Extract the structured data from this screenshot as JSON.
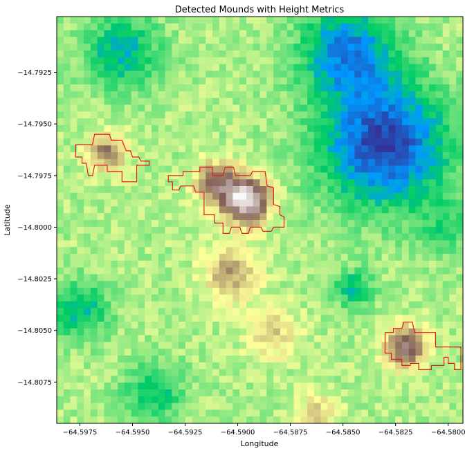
{
  "chart_data": {
    "type": "heatmap",
    "title": "Detected Mounds with Height Metrics",
    "xlabel": "Longitude",
    "ylabel": "Latitude",
    "xlim": [
      -64.5986,
      -64.5793
    ],
    "ylim": [
      -14.8095,
      -14.7898
    ],
    "x_ticks": [
      -64.5975,
      -64.595,
      -64.5925,
      -64.59,
      -64.5875,
      -64.585,
      -64.5825,
      -64.58
    ],
    "x_tick_labels": [
      "−64.5975",
      "−64.5950",
      "−64.5925",
      "−64.5900",
      "−64.5875",
      "−64.5850",
      "−64.5825",
      "−64.5800"
    ],
    "y_ticks": [
      -14.7925,
      -14.795,
      -14.7975,
      -14.8,
      -14.8025,
      -14.805,
      -14.8075
    ],
    "y_tick_labels": [
      "−14.7925",
      "−14.7950",
      "−14.7975",
      "−14.8000",
      "−14.8025",
      "−14.8050",
      "−14.8075"
    ],
    "colormap": "terrain",
    "grid": false,
    "grid_size": [
      60,
      60
    ],
    "mound_outline_color": "#e31a1c",
    "elevation_model": {
      "base": 0.42,
      "high_features": [
        {
          "lon": -64.5896,
          "lat": -14.7987,
          "amplitude": 0.55,
          "radius": 0.0011
        },
        {
          "lon": -64.591,
          "lat": -14.7978,
          "amplitude": 0.32,
          "radius": 0.001
        },
        {
          "lon": -64.5962,
          "lat": -14.7964,
          "amplitude": 0.28,
          "radius": 0.0009
        },
        {
          "lon": -64.582,
          "lat": -14.8058,
          "amplitude": 0.36,
          "radius": 0.001
        },
        {
          "lon": -64.5903,
          "lat": -14.8022,
          "amplitude": 0.22,
          "radius": 0.0013
        },
        {
          "lon": -64.5883,
          "lat": -14.8052,
          "amplitude": 0.16,
          "radius": 0.0012
        },
        {
          "lon": -64.5862,
          "lat": -14.809,
          "amplitude": 0.14,
          "radius": 0.001
        }
      ],
      "low_features": [
        {
          "lon": -64.583,
          "lat": -14.796,
          "amplitude": 0.4,
          "radius": 0.003
        },
        {
          "lon": -64.5848,
          "lat": -14.7915,
          "amplitude": 0.3,
          "radius": 0.0022
        },
        {
          "lon": -64.5955,
          "lat": -14.7915,
          "amplitude": 0.22,
          "radius": 0.0018
        },
        {
          "lon": -64.5975,
          "lat": -14.804,
          "amplitude": 0.2,
          "radius": 0.0014
        },
        {
          "lon": -64.594,
          "lat": -14.808,
          "amplitude": 0.18,
          "radius": 0.0014
        },
        {
          "lon": -64.5845,
          "lat": -14.803,
          "amplitude": 0.2,
          "radius": 0.0009
        },
        {
          "lon": -64.58,
          "lat": -14.8,
          "amplitude": 0.12,
          "radius": 0.0012
        }
      ]
    },
    "mounds": [
      {
        "id": 1,
        "outline": [
          [
            -64.5977,
            -14.796
          ],
          [
            -64.5969,
            -14.796
          ],
          [
            -64.5968,
            -14.7955
          ],
          [
            -64.5961,
            -14.7955
          ],
          [
            -64.596,
            -14.7958
          ],
          [
            -64.5955,
            -14.7958
          ],
          [
            -64.5953,
            -14.7963
          ],
          [
            -64.5951,
            -14.7963
          ],
          [
            -64.595,
            -14.7966
          ],
          [
            -64.5947,
            -14.7966
          ],
          [
            -64.5946,
            -14.7968
          ],
          [
            -64.5942,
            -14.7968
          ],
          [
            -64.5942,
            -14.797
          ],
          [
            -64.5948,
            -14.797
          ],
          [
            -64.5948,
            -14.7978
          ],
          [
            -64.5955,
            -14.7978
          ],
          [
            -64.5955,
            -14.7973
          ],
          [
            -64.5962,
            -14.7973
          ],
          [
            -64.5962,
            -14.797
          ],
          [
            -64.5968,
            -14.797
          ],
          [
            -64.5969,
            -14.7975
          ],
          [
            -64.5971,
            -14.7975
          ],
          [
            -64.5972,
            -14.7969
          ],
          [
            -64.5974,
            -14.7969
          ],
          [
            -64.5974,
            -14.7966
          ],
          [
            -64.5977,
            -14.7966
          ]
        ]
      },
      {
        "id": 2,
        "outline": [
          [
            -64.5933,
            -14.7975
          ],
          [
            -64.5926,
            -14.7975
          ],
          [
            -64.5926,
            -14.7973
          ],
          [
            -64.5918,
            -14.7973
          ],
          [
            -64.5918,
            -14.7971
          ],
          [
            -64.5912,
            -14.7971
          ],
          [
            -64.5912,
            -14.7975
          ],
          [
            -64.5907,
            -14.7975
          ],
          [
            -64.5906,
            -14.7971
          ],
          [
            -64.5902,
            -14.7971
          ],
          [
            -64.5901,
            -14.7975
          ],
          [
            -64.5894,
            -14.7975
          ],
          [
            -64.5893,
            -14.7973
          ],
          [
            -64.5887,
            -14.7973
          ],
          [
            -64.5886,
            -14.798
          ],
          [
            -64.5883,
            -14.7981
          ],
          [
            -64.5883,
            -14.7989
          ],
          [
            -64.588,
            -14.799
          ],
          [
            -64.588,
            -14.7994
          ],
          [
            -64.5878,
            -14.7995
          ],
          [
            -64.5878,
            -14.8
          ],
          [
            -64.5883,
            -14.8
          ],
          [
            -64.5884,
            -14.8002
          ],
          [
            -64.5888,
            -14.8002
          ],
          [
            -64.5889,
            -14.8
          ],
          [
            -64.5894,
            -14.8
          ],
          [
            -64.5895,
            -14.8003
          ],
          [
            -64.5898,
            -14.8003
          ],
          [
            -64.5899,
            -14.8
          ],
          [
            -64.5903,
            -14.8
          ],
          [
            -64.5904,
            -14.8003
          ],
          [
            -64.5907,
            -14.8003
          ],
          [
            -64.5907,
            -14.7998
          ],
          [
            -64.5911,
            -14.7998
          ],
          [
            -64.5911,
            -14.7994
          ],
          [
            -64.5916,
            -14.7994
          ],
          [
            -64.5916,
            -14.7983
          ],
          [
            -64.592,
            -14.7983
          ],
          [
            -64.5921,
            -14.798
          ],
          [
            -64.5927,
            -14.798
          ],
          [
            -64.5928,
            -14.7982
          ],
          [
            -64.5931,
            -14.7982
          ],
          [
            -64.5931,
            -14.7978
          ],
          [
            -64.5933,
            -14.7978
          ]
        ]
      },
      {
        "id": 3,
        "outline": [
          [
            -64.583,
            -14.8051
          ],
          [
            -64.5826,
            -14.8051
          ],
          [
            -64.5826,
            -14.8049
          ],
          [
            -64.5822,
            -14.8049
          ],
          [
            -64.5821,
            -14.8046
          ],
          [
            -64.5817,
            -14.8046
          ],
          [
            -64.5816,
            -14.8051
          ],
          [
            -64.5806,
            -14.8051
          ],
          [
            -64.5806,
            -14.8058
          ],
          [
            -64.5794,
            -14.8058
          ],
          [
            -64.5794,
            -14.8069
          ],
          [
            -64.5797,
            -14.8069
          ],
          [
            -64.5797,
            -14.8066
          ],
          [
            -64.58,
            -14.8066
          ],
          [
            -64.58,
            -14.8063
          ],
          [
            -64.5802,
            -14.8063
          ],
          [
            -64.5802,
            -14.8067
          ],
          [
            -64.5808,
            -14.8067
          ],
          [
            -64.5808,
            -14.8069
          ],
          [
            -64.5814,
            -14.8069
          ],
          [
            -64.5814,
            -14.8066
          ],
          [
            -64.5818,
            -14.8066
          ],
          [
            -64.5818,
            -14.8067
          ],
          [
            -64.5822,
            -14.8067
          ],
          [
            -64.5822,
            -14.8064
          ],
          [
            -64.5827,
            -14.8064
          ],
          [
            -64.5827,
            -14.8061
          ],
          [
            -64.583,
            -14.8061
          ]
        ]
      }
    ]
  }
}
